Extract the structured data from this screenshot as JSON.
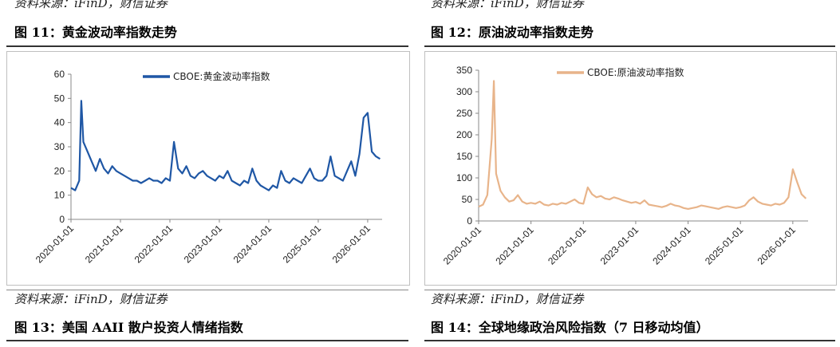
{
  "top_source_left": "资料来源：iFinD，财信证券",
  "top_source_right": "资料来源：iFinD，财信证券",
  "bottom_source_left": "资料来源：iFinD，财信证券",
  "bottom_source_right": "资料来源：iFinD，财信证券",
  "fig11_title": "图 11：黄金波动率指数走势",
  "fig12_title": "图 12：原油波动率指数走势",
  "fig13_title": "图 13：美国 AAII 散户投资人情绪指数",
  "fig14_title": "图 14：全球地缘政治风险指数（7 日移动均值）",
  "chart_data": [
    {
      "type": "line",
      "title": "",
      "color": "#1f57a5",
      "ylim": [
        0,
        60
      ],
      "yticks": [
        "0",
        "10",
        "20",
        "30",
        "40",
        "50",
        "60"
      ],
      "xticks": [
        "2020-01-01",
        "2021-01-01",
        "2022-01-01",
        "2023-01-01",
        "2024-01-01",
        "2025-01-01",
        "2026-01-01"
      ],
      "series": [
        {
          "name": "CBOE:黄金波动率指数",
          "x": [
            "2020-01",
            "2020-02",
            "2020-03",
            "2020-03",
            "2020-04",
            "2020-05",
            "2020-06",
            "2020-07",
            "2020-08",
            "2020-09",
            "2020-10",
            "2020-11",
            "2020-12",
            "2021-01",
            "2021-02",
            "2021-03",
            "2021-04",
            "2021-05",
            "2021-06",
            "2021-07",
            "2021-08",
            "2021-09",
            "2021-10",
            "2021-11",
            "2021-12",
            "2022-01",
            "2022-02",
            "2022-03",
            "2022-04",
            "2022-05",
            "2022-06",
            "2022-07",
            "2022-08",
            "2022-09",
            "2022-10",
            "2022-11",
            "2022-12",
            "2023-01",
            "2023-02",
            "2023-03",
            "2023-04",
            "2023-05",
            "2023-06",
            "2023-07",
            "2023-08",
            "2023-09",
            "2023-10",
            "2023-11",
            "2023-12",
            "2024-01",
            "2024-02",
            "2024-03",
            "2024-04",
            "2024-05",
            "2024-06",
            "2024-07",
            "2024-08",
            "2024-09",
            "2024-10",
            "2024-11",
            "2024-12",
            "2025-01",
            "2025-02",
            "2025-03",
            "2025-04",
            "2025-05",
            "2025-06",
            "2025-07",
            "2025-08",
            "2025-09",
            "2025-10",
            "2025-11",
            "2025-12",
            "2026-01",
            "2026-02",
            "2026-03",
            "2026-04"
          ],
          "values": [
            13,
            12,
            16,
            49,
            32,
            28,
            24,
            20,
            25,
            21,
            19,
            22,
            20,
            19,
            18,
            17,
            16,
            16,
            15,
            16,
            17,
            16,
            16,
            15,
            17,
            16,
            32,
            21,
            19,
            22,
            18,
            17,
            19,
            20,
            18,
            17,
            16,
            18,
            17,
            20,
            16,
            15,
            14,
            16,
            15,
            21,
            16,
            14,
            13,
            12,
            14,
            13,
            20,
            16,
            15,
            17,
            16,
            15,
            18,
            21,
            17,
            16,
            16,
            18,
            26,
            18,
            17,
            16,
            20,
            24,
            18,
            27,
            42,
            44,
            28,
            26,
            25
          ]
        }
      ]
    },
    {
      "type": "line",
      "title": "",
      "color": "#e8b48a",
      "ylim": [
        0,
        350
      ],
      "yticks": [
        "0",
        "50",
        "100",
        "150",
        "200",
        "250",
        "300",
        "350"
      ],
      "xticks": [
        "2020-01-01",
        "2021-01-01",
        "2022-01-01",
        "2023-01-01",
        "2024-01-01",
        "2025-01-01",
        "2026-01-01"
      ],
      "series": [
        {
          "name": "CBOE:原油波动率指数",
          "x": [
            "2020-01",
            "2020-02",
            "2020-03",
            "2020-04",
            "2020-04",
            "2020-05",
            "2020-06",
            "2020-07",
            "2020-08",
            "2020-09",
            "2020-10",
            "2020-11",
            "2020-12",
            "2021-01",
            "2021-02",
            "2021-03",
            "2021-04",
            "2021-05",
            "2021-06",
            "2021-07",
            "2021-08",
            "2021-09",
            "2021-10",
            "2021-11",
            "2021-12",
            "2022-01",
            "2022-02",
            "2022-03",
            "2022-04",
            "2022-05",
            "2022-06",
            "2022-07",
            "2022-08",
            "2022-09",
            "2022-10",
            "2022-11",
            "2022-12",
            "2023-01",
            "2023-02",
            "2023-03",
            "2023-04",
            "2023-05",
            "2023-06",
            "2023-07",
            "2023-08",
            "2023-09",
            "2023-10",
            "2023-11",
            "2023-12",
            "2024-01",
            "2024-02",
            "2024-03",
            "2024-04",
            "2024-05",
            "2024-06",
            "2024-07",
            "2024-08",
            "2024-09",
            "2024-10",
            "2024-11",
            "2024-12",
            "2025-01",
            "2025-02",
            "2025-03",
            "2025-04",
            "2025-05",
            "2025-06",
            "2025-07",
            "2025-08",
            "2025-09",
            "2025-10",
            "2025-11",
            "2025-12",
            "2026-01",
            "2026-02",
            "2026-03",
            "2026-04"
          ],
          "values": [
            33,
            38,
            60,
            190,
            325,
            110,
            70,
            55,
            45,
            48,
            60,
            45,
            40,
            42,
            40,
            45,
            38,
            36,
            40,
            38,
            42,
            40,
            45,
            50,
            42,
            40,
            78,
            62,
            55,
            58,
            52,
            50,
            55,
            52,
            48,
            45,
            42,
            44,
            40,
            48,
            38,
            36,
            34,
            32,
            35,
            40,
            36,
            34,
            30,
            28,
            30,
            32,
            36,
            34,
            32,
            30,
            28,
            32,
            34,
            32,
            30,
            32,
            36,
            48,
            55,
            45,
            40,
            38,
            36,
            40,
            38,
            42,
            55,
            120,
            90,
            62,
            52
          ]
        }
      ]
    }
  ]
}
